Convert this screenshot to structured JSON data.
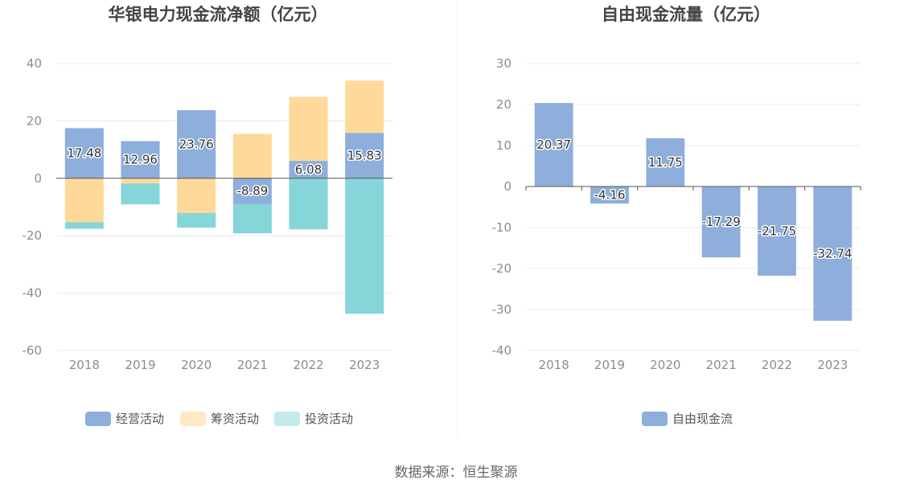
{
  "colors": {
    "operating": "#8eaedb",
    "financing": "#ffd99a",
    "investing": "#86d5d9",
    "free_cf": "#8eaedb",
    "legend_financing": "#ffe8c4",
    "legend_investing": "#c4eaec",
    "grid": "#e6e9ef",
    "zero_line": "#555555"
  },
  "source_text": "数据来源：恒生聚源",
  "chart_data": [
    {
      "type": "bar",
      "stacked": true,
      "title": "华银电力现金流净额（亿元）",
      "categories": [
        "2018",
        "2019",
        "2020",
        "2021",
        "2022",
        "2023"
      ],
      "ylim": [
        -60,
        40
      ],
      "yticks": [
        -60,
        -40,
        -20,
        0,
        20,
        40
      ],
      "grid": true,
      "legend_position": "bottom",
      "series": [
        {
          "name": "经营活动",
          "values": [
            17.48,
            12.96,
            23.76,
            -8.89,
            6.08,
            15.83
          ],
          "labeled": true
        },
        {
          "name": "筹资活动",
          "values": [
            -15.3,
            -1.8,
            -12.1,
            15.5,
            22.3,
            18.2
          ],
          "labeled": false
        },
        {
          "name": "投资活动",
          "values": [
            -2.3,
            -7.3,
            -5.1,
            -10.3,
            -17.8,
            -47.2
          ],
          "labeled": false
        }
      ]
    },
    {
      "type": "bar",
      "title": "自由现金流量（亿元）",
      "categories": [
        "2018",
        "2019",
        "2020",
        "2021",
        "2022",
        "2023"
      ],
      "ylim": [
        -40,
        30
      ],
      "yticks": [
        -40,
        -30,
        -20,
        -10,
        0,
        10,
        20,
        30
      ],
      "grid": true,
      "legend_position": "bottom",
      "series": [
        {
          "name": "自由现金流",
          "values": [
            20.37,
            -4.16,
            11.75,
            -17.29,
            -21.75,
            -32.74
          ],
          "labeled": true
        }
      ]
    }
  ]
}
